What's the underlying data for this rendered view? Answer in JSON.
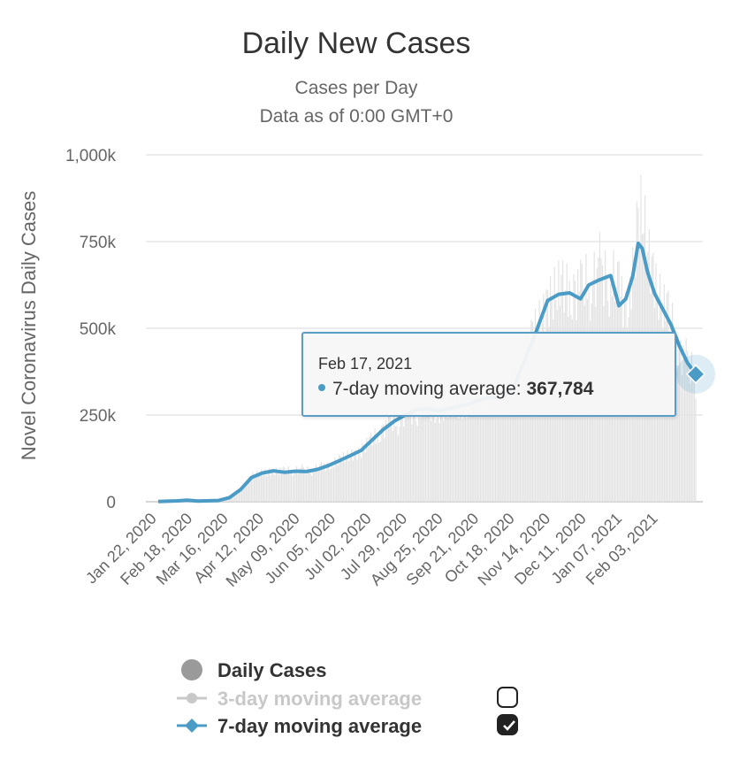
{
  "chart_data": {
    "type": "bar",
    "title": "Daily New Cases",
    "subtitle": [
      "Cases per Day",
      "Data as of 0:00 GMT+0"
    ],
    "ylabel": "Novel Coronavirus Daily Cases",
    "xlabel": "",
    "ylim": [
      0,
      1000000
    ],
    "y_ticks": [
      "0",
      "250k",
      "500k",
      "750k",
      "1,000k"
    ],
    "y_tick_values": [
      0,
      250000,
      500000,
      750000,
      1000000
    ],
    "x_range": [
      "2020-01-22",
      "2021-02-17"
    ],
    "x_ticks": [
      "Jan 22, 2020",
      "Feb 18, 2020",
      "Mar 16, 2020",
      "Apr 12, 2020",
      "May 09, 2020",
      "Jun 05, 2020",
      "Jul 02, 2020",
      "Jul 29, 2020",
      "Aug 25, 2020",
      "Sep 21, 2020",
      "Oct 18, 2020",
      "Nov 14, 2020",
      "Dec 11, 2020",
      "Jan 07, 2021",
      "Feb 03, 2021"
    ],
    "grid": true,
    "legend_placement": "bottom",
    "colors": {
      "bars": "#e3e3e3",
      "seven_day": "#4a9bc6",
      "three_day": "#c8c8c8"
    },
    "series": [
      {
        "name": "Daily Cases",
        "type": "bar",
        "visible": true,
        "x": [
          "2020-01-22",
          "2020-02-05",
          "2020-02-12",
          "2020-02-20",
          "2020-03-06",
          "2020-03-14",
          "2020-03-22",
          "2020-03-30",
          "2020-04-07",
          "2020-04-15",
          "2020-04-23",
          "2020-05-01",
          "2020-05-09",
          "2020-05-17",
          "2020-05-25",
          "2020-06-02",
          "2020-06-10",
          "2020-06-18",
          "2020-06-26",
          "2020-07-04",
          "2020-07-12",
          "2020-07-20",
          "2020-07-28",
          "2020-08-05",
          "2020-08-13",
          "2020-08-21",
          "2020-08-29",
          "2020-09-06",
          "2020-09-14",
          "2020-09-22",
          "2020-09-30",
          "2020-10-08",
          "2020-10-16",
          "2020-10-24",
          "2020-11-01",
          "2020-11-09",
          "2020-11-17",
          "2020-11-25",
          "2020-12-01",
          "2020-12-09",
          "2020-12-17",
          "2020-12-23",
          "2020-12-28",
          "2021-01-02",
          "2021-01-06",
          "2021-01-09",
          "2021-01-13",
          "2021-01-18",
          "2021-01-24",
          "2021-01-30",
          "2021-02-05",
          "2021-02-11",
          "2021-02-17"
        ],
        "y": [
          600,
          2800,
          6000,
          2000,
          4000,
          12000,
          35000,
          75000,
          82000,
          90000,
          88000,
          92000,
          90000,
          95000,
          105000,
          120000,
          135000,
          145000,
          180000,
          210000,
          230000,
          250000,
          265000,
          270000,
          262000,
          270000,
          275000,
          282000,
          295000,
          300000,
          305000,
          340000,
          420000,
          500000,
          580000,
          610000,
          615000,
          600000,
          640000,
          650000,
          655000,
          600000,
          560000,
          660000,
          800000,
          840000,
          720000,
          650000,
          560000,
          520000,
          440000,
          390000,
          370000
        ]
      },
      {
        "name": "3-day moving average",
        "type": "line",
        "visible": false,
        "y": []
      },
      {
        "name": "7-day moving average",
        "type": "line",
        "visible": true,
        "x": [
          "2020-01-22",
          "2020-02-05",
          "2020-02-12",
          "2020-02-20",
          "2020-03-06",
          "2020-03-14",
          "2020-03-22",
          "2020-03-30",
          "2020-04-07",
          "2020-04-15",
          "2020-04-23",
          "2020-05-01",
          "2020-05-09",
          "2020-05-17",
          "2020-05-25",
          "2020-06-02",
          "2020-06-10",
          "2020-06-18",
          "2020-06-26",
          "2020-07-04",
          "2020-07-12",
          "2020-07-20",
          "2020-07-28",
          "2020-08-05",
          "2020-08-13",
          "2020-08-21",
          "2020-08-29",
          "2020-09-06",
          "2020-09-14",
          "2020-09-22",
          "2020-09-30",
          "2020-10-08",
          "2020-10-16",
          "2020-10-24",
          "2020-11-01",
          "2020-11-09",
          "2020-11-17",
          "2020-11-25",
          "2020-12-01",
          "2020-12-09",
          "2020-12-17",
          "2020-12-23",
          "2020-12-28",
          "2021-01-02",
          "2021-01-06",
          "2021-01-09",
          "2021-01-13",
          "2021-01-18",
          "2021-01-24",
          "2021-01-30",
          "2021-02-05",
          "2021-02-11",
          "2021-02-17"
        ],
        "y": [
          600,
          2500,
          4500,
          2000,
          3500,
          12000,
          35000,
          70000,
          83000,
          89000,
          85000,
          88000,
          87000,
          93000,
          104000,
          118000,
          133000,
          148000,
          178000,
          208000,
          232000,
          250000,
          265000,
          268000,
          262000,
          268000,
          276000,
          283000,
          296000,
          300000,
          303000,
          338000,
          415000,
          495000,
          580000,
          598000,
          602000,
          585000,
          625000,
          640000,
          652000,
          565000,
          585000,
          650000,
          745000,
          730000,
          660000,
          600000,
          555000,
          510000,
          450000,
          400000,
          367784
        ]
      }
    ],
    "tooltip": {
      "date": "Feb 17, 2021",
      "series": "7-day moving average",
      "value": "367,784"
    }
  },
  "legend": {
    "items": [
      {
        "label": "Daily Cases",
        "checkbox": null
      },
      {
        "label": "3-day moving average",
        "checkbox": false
      },
      {
        "label": "7-day moving average",
        "checkbox": true
      }
    ]
  }
}
